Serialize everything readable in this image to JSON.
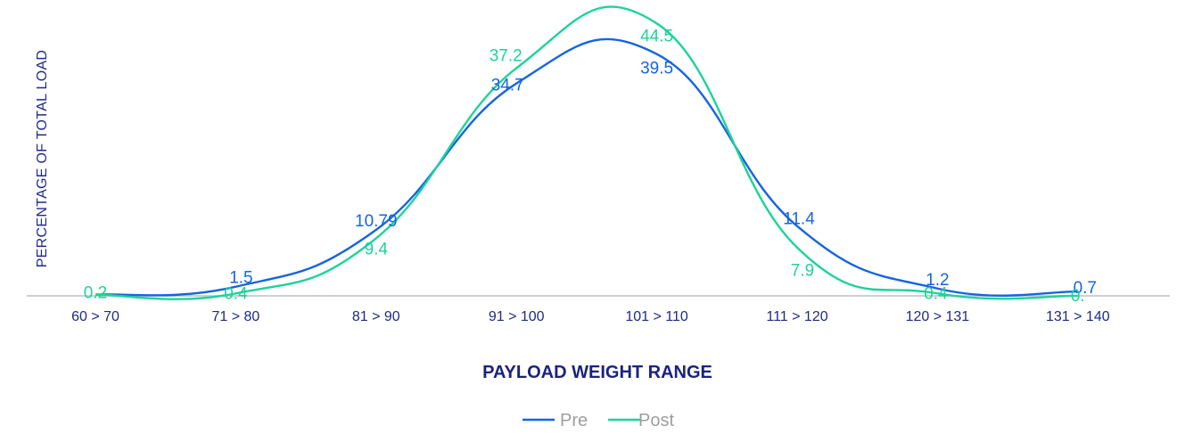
{
  "chart_data": {
    "type": "line",
    "ylabel": "PERCENTAGE OF TOTAL LOAD",
    "xlabel": "PAYLOAD WEIGHT RANGE",
    "categories": [
      "60 > 70",
      "71 > 80",
      "81 > 90",
      "91 > 100",
      "101 > 110",
      "111 > 120",
      "120 > 131",
      "131 > 140"
    ],
    "series": [
      {
        "name": "Pre",
        "color": "#1565e0",
        "values": [
          0.2,
          1.5,
          10.79,
          34.7,
          39.5,
          11.4,
          1.2,
          0.7
        ],
        "labels": [
          "",
          "1.5",
          "10.79",
          "34.7",
          "39.5",
          "11.4",
          "1.2",
          "0.7"
        ]
      },
      {
        "name": "Post",
        "color": "#1dd39b",
        "values": [
          0.2,
          0.4,
          9.4,
          37.2,
          44.5,
          7.9,
          0.4,
          0.0
        ],
        "labels": [
          "0.2",
          "0.4",
          "9.4",
          "37.2",
          "44.5",
          "7.9",
          "0.4",
          "0."
        ]
      }
    ],
    "ylim": [
      0,
      46
    ],
    "grid": false,
    "legend": "bottom-center"
  }
}
